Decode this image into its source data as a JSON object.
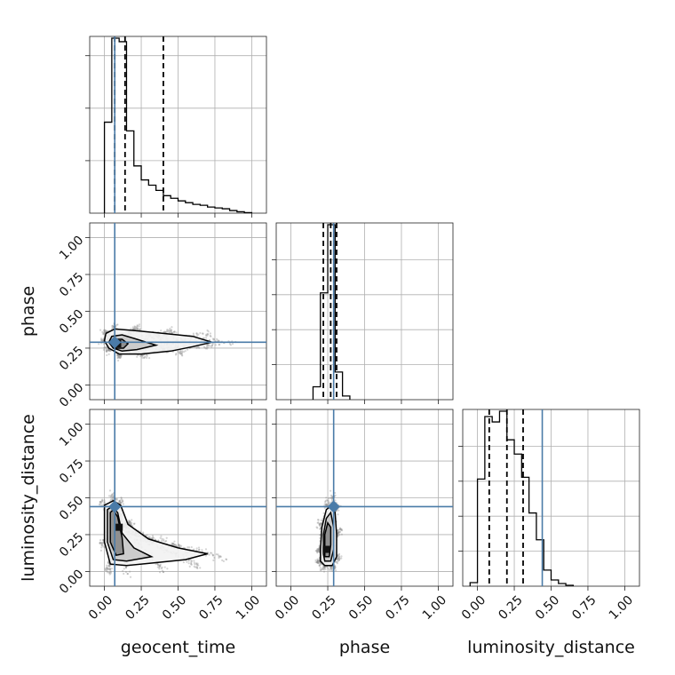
{
  "chart_data": {
    "type": "corner",
    "parameters": [
      "geocent_time",
      "phase",
      "luminosity_distance"
    ],
    "axis_range": [
      -0.1,
      1.1
    ],
    "ticks": [
      0.0,
      0.25,
      0.5,
      0.75,
      1.0
    ],
    "tick_labels": [
      "0.00",
      "0.25",
      "0.50",
      "0.75",
      "1.00"
    ],
    "grid": true,
    "colors": {
      "truth": "#4a7ba8",
      "histogram": "#000000",
      "samples": "#888888"
    },
    "truths": {
      "geocent_time": 0.07,
      "phase": 0.29,
      "luminosity_distance": 0.44
    },
    "histograms": [
      {
        "parameter": "geocent_time",
        "bin_width": 0.05,
        "bin_starts": [
          0.0,
          0.05,
          0.1,
          0.15,
          0.2,
          0.25,
          0.3,
          0.35,
          0.4,
          0.45,
          0.5,
          0.55,
          0.6,
          0.65,
          0.7,
          0.75,
          0.8,
          0.85,
          0.9,
          0.95
        ],
        "heights": [
          0.52,
          1.0,
          0.98,
          0.47,
          0.27,
          0.19,
          0.16,
          0.13,
          0.1,
          0.085,
          0.07,
          0.06,
          0.05,
          0.045,
          0.035,
          0.03,
          0.025,
          0.015,
          0.008,
          0.003
        ],
        "quantiles": [
          0.07,
          0.14,
          0.4
        ]
      },
      {
        "parameter": "phase",
        "bin_width": 0.05,
        "bin_starts": [
          0.15,
          0.2,
          0.25,
          0.3,
          0.35
        ],
        "heights": [
          0.07,
          0.58,
          0.95,
          0.15,
          0.02
        ],
        "quantiles": [
          0.22,
          0.27,
          0.31
        ]
      },
      {
        "parameter": "luminosity_distance",
        "bin_width": 0.05,
        "bin_starts": [
          -0.05,
          0.0,
          0.05,
          0.1,
          0.15,
          0.2,
          0.25,
          0.3,
          0.35,
          0.4,
          0.45,
          0.5,
          0.55,
          0.6
        ],
        "heights": [
          0.02,
          0.6,
          0.95,
          0.92,
          0.98,
          0.82,
          0.74,
          0.61,
          0.41,
          0.26,
          0.09,
          0.035,
          0.015,
          0.005
        ],
        "quantiles": [
          0.08,
          0.2,
          0.31
        ]
      }
    ],
    "scatter_2d": [
      {
        "x": "geocent_time",
        "y": "phase",
        "peak": [
          0.09,
          0.28
        ],
        "contours": [
          [
            [
              0.0,
              0.3
            ],
            [
              0.03,
              0.25
            ],
            [
              0.1,
              0.21
            ],
            [
              0.25,
              0.21
            ],
            [
              0.45,
              0.23
            ],
            [
              0.6,
              0.26
            ],
            [
              0.73,
              0.29
            ],
            [
              0.6,
              0.33
            ],
            [
              0.4,
              0.35
            ],
            [
              0.2,
              0.37
            ],
            [
              0.07,
              0.38
            ],
            [
              0.01,
              0.35
            ]
          ],
          [
            [
              0.03,
              0.29
            ],
            [
              0.06,
              0.25
            ],
            [
              0.12,
              0.23
            ],
            [
              0.22,
              0.24
            ],
            [
              0.35,
              0.27
            ],
            [
              0.22,
              0.31
            ],
            [
              0.12,
              0.34
            ],
            [
              0.05,
              0.33
            ]
          ],
          [
            [
              0.05,
              0.28
            ],
            [
              0.08,
              0.25
            ],
            [
              0.13,
              0.25
            ],
            [
              0.16,
              0.28
            ],
            [
              0.12,
              0.31
            ],
            [
              0.07,
              0.31
            ]
          ]
        ]
      },
      {
        "x": "geocent_time",
        "y": "luminosity_distance",
        "peak": [
          0.1,
          0.3
        ],
        "contours": [
          [
            [
              0.0,
              0.45
            ],
            [
              0.0,
              0.2
            ],
            [
              0.04,
              0.05
            ],
            [
              0.15,
              0.04
            ],
            [
              0.35,
              0.06
            ],
            [
              0.55,
              0.08
            ],
            [
              0.7,
              0.12
            ],
            [
              0.5,
              0.16
            ],
            [
              0.3,
              0.22
            ],
            [
              0.16,
              0.32
            ],
            [
              0.11,
              0.45
            ],
            [
              0.06,
              0.48
            ]
          ],
          [
            [
              0.02,
              0.42
            ],
            [
              0.02,
              0.2
            ],
            [
              0.06,
              0.08
            ],
            [
              0.15,
              0.07
            ],
            [
              0.32,
              0.1
            ],
            [
              0.2,
              0.16
            ],
            [
              0.12,
              0.26
            ],
            [
              0.09,
              0.4
            ],
            [
              0.05,
              0.44
            ]
          ],
          [
            [
              0.04,
              0.4
            ],
            [
              0.04,
              0.2
            ],
            [
              0.08,
              0.11
            ],
            [
              0.13,
              0.12
            ],
            [
              0.12,
              0.23
            ],
            [
              0.09,
              0.37
            ],
            [
              0.06,
              0.42
            ]
          ]
        ]
      },
      {
        "x": "phase",
        "y": "luminosity_distance",
        "peak": [
          0.24,
          0.15
        ],
        "contours": [
          [
            [
              0.23,
              0.04
            ],
            [
              0.28,
              0.04
            ],
            [
              0.31,
              0.1
            ],
            [
              0.31,
              0.25
            ],
            [
              0.3,
              0.4
            ],
            [
              0.28,
              0.45
            ],
            [
              0.24,
              0.42
            ],
            [
              0.21,
              0.3
            ],
            [
              0.2,
              0.15
            ],
            [
              0.2,
              0.07
            ]
          ],
          [
            [
              0.23,
              0.07
            ],
            [
              0.27,
              0.07
            ],
            [
              0.29,
              0.15
            ],
            [
              0.29,
              0.3
            ],
            [
              0.27,
              0.4
            ],
            [
              0.24,
              0.36
            ],
            [
              0.22,
              0.25
            ],
            [
              0.22,
              0.12
            ]
          ],
          [
            [
              0.23,
              0.1
            ],
            [
              0.26,
              0.1
            ],
            [
              0.27,
              0.18
            ],
            [
              0.27,
              0.3
            ],
            [
              0.25,
              0.33
            ],
            [
              0.23,
              0.25
            ],
            [
              0.23,
              0.15
            ]
          ]
        ]
      }
    ]
  }
}
